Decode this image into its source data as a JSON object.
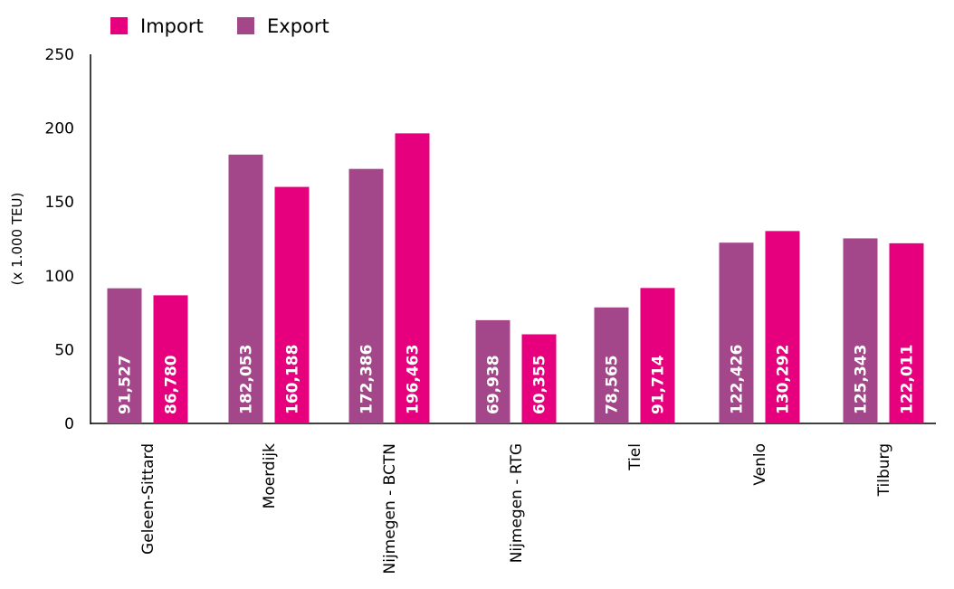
{
  "chart_data": {
    "type": "bar",
    "ylabel": "(x 1.000 TEU)",
    "ylim": [
      0,
      250
    ],
    "yticks": [
      0,
      50,
      100,
      150,
      200,
      250
    ],
    "grid": false,
    "legend_position": "top-left",
    "categories": [
      "Geleen-Sittard",
      "Moerdijk",
      "Nijmegen - BCTN",
      "Nijmegen - RTG",
      "Tiel",
      "Venlo",
      "Tilburg"
    ],
    "series": [
      {
        "name": "Export",
        "color": "#a4478a",
        "values": [
          91.527,
          182.053,
          172.386,
          69.938,
          78.565,
          122.426,
          125.343
        ],
        "labels": [
          "91,527",
          "182,053",
          "172,386",
          "69,938",
          "78,565",
          "122,426",
          "125,343"
        ]
      },
      {
        "name": "Import",
        "color": "#e6007e",
        "values": [
          86.78,
          160.188,
          196.463,
          60.355,
          91.714,
          130.292,
          122.011
        ],
        "labels": [
          "86,780",
          "160,188",
          "196,463",
          "60,355",
          "91,714",
          "130,292",
          "122,011"
        ]
      }
    ],
    "legend": [
      {
        "name": "Import",
        "color": "#e6007e"
      },
      {
        "name": "Export",
        "color": "#a4478a"
      }
    ]
  }
}
